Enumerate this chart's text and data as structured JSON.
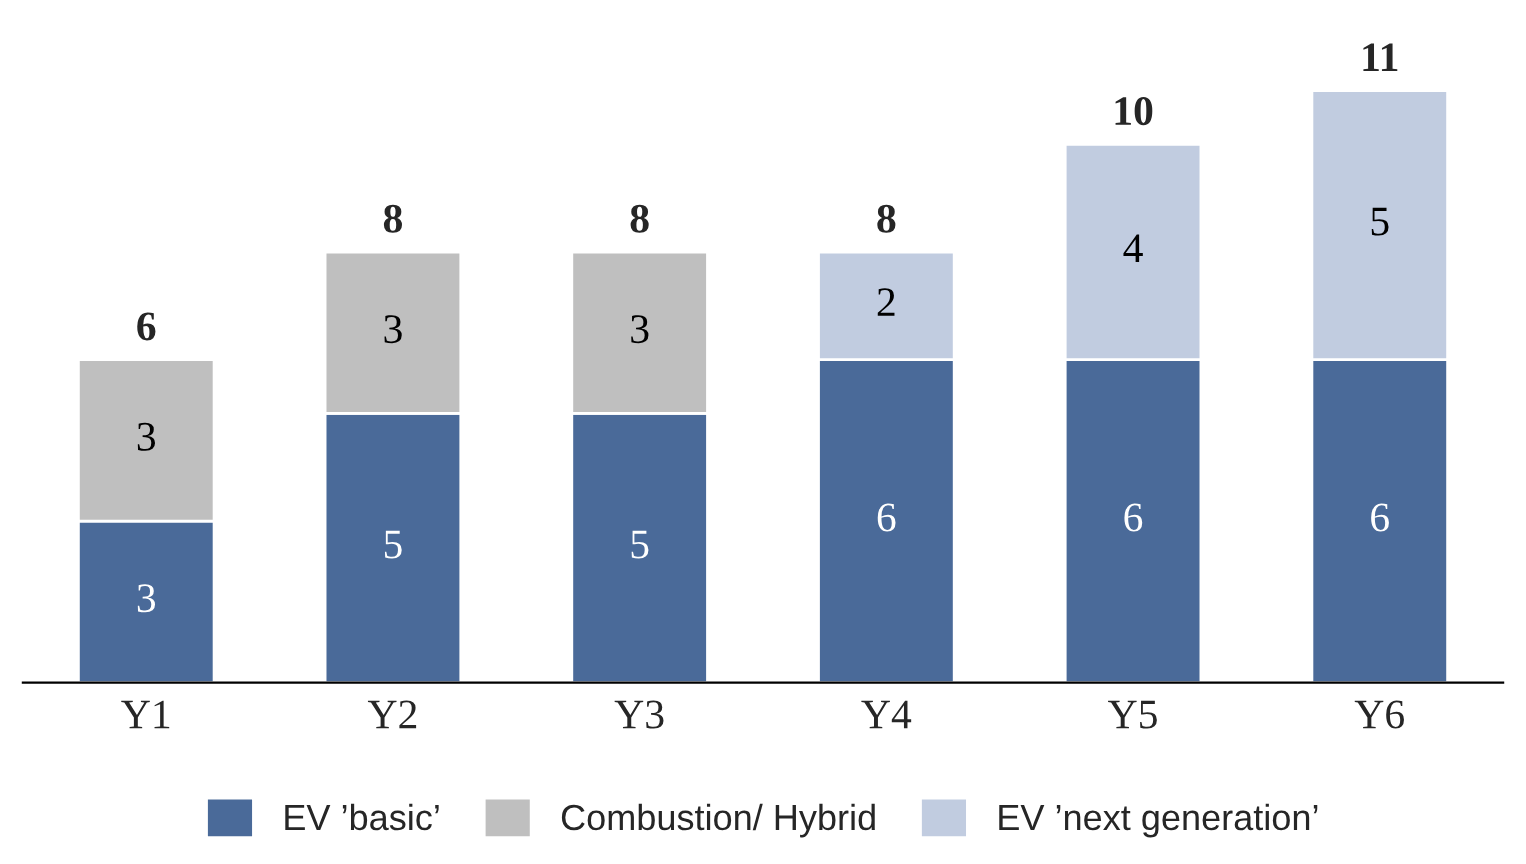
{
  "chart_data": {
    "type": "bar",
    "stacked": true,
    "data_labels": true,
    "legend": "bottom",
    "grid": false,
    "categories": [
      "Y1",
      "Y2",
      "Y3",
      "Y4",
      "Y5",
      "Y6"
    ],
    "series": [
      {
        "name": "EV ’basic’",
        "color": "#4a6a99",
        "values": [
          3,
          5,
          5,
          6,
          6,
          6
        ]
      },
      {
        "name": "Combustion/ Hybrid",
        "color": "#bfbfbf",
        "values": [
          3,
          3,
          3,
          null,
          null,
          null
        ]
      },
      {
        "name": "EV ’next generation’",
        "color": "#c1cce0",
        "values": [
          null,
          null,
          null,
          2,
          4,
          5
        ]
      }
    ],
    "totals": [
      "6",
      "8",
      "8",
      "8",
      "10",
      "11"
    ]
  }
}
